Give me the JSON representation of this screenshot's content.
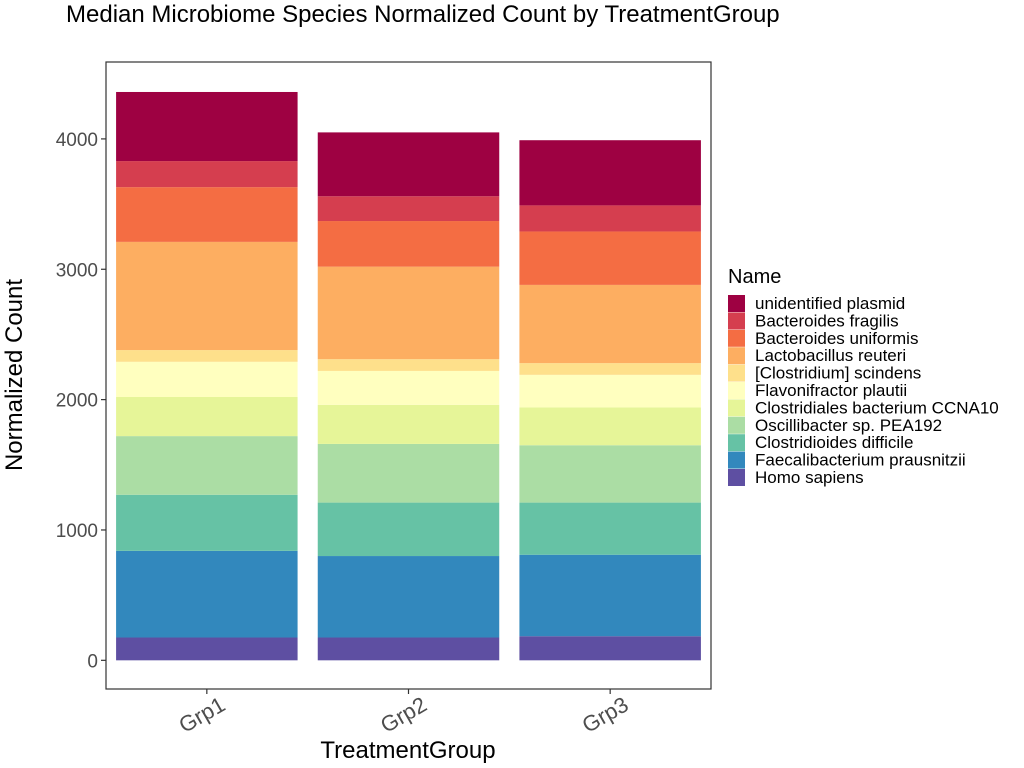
{
  "chart_data": {
    "type": "bar",
    "stacked": true,
    "title": "Median Microbiome Species Normalized Count by TreatmentGroup",
    "xlabel": "TreatmentGroup",
    "ylabel": "Normalized Count",
    "ylim": [
      -220,
      4590
    ],
    "yticks": [
      0,
      1000,
      2000,
      3000,
      4000
    ],
    "grid": false,
    "legend_position": "right",
    "legend_title": "Name",
    "categories": [
      "Grp1",
      "Grp2",
      "Grp3"
    ],
    "series": [
      {
        "name": "Homo sapiens",
        "color": "#5E4FA2",
        "values": [
          175,
          175,
          185
        ]
      },
      {
        "name": "Faecalibacterium prausnitzii",
        "color": "#3288BD",
        "values": [
          665,
          625,
          625
        ]
      },
      {
        "name": "Clostridioides difficile",
        "color": "#66C2A5",
        "values": [
          430,
          410,
          400
        ]
      },
      {
        "name": "Oscillibacter sp. PEA192",
        "color": "#ABDDA4",
        "values": [
          450,
          450,
          440
        ]
      },
      {
        "name": "Clostridiales bacterium CCNA10",
        "color": "#E6F598",
        "values": [
          300,
          300,
          290
        ]
      },
      {
        "name": "Flavonifractor plautii",
        "color": "#FFFFBF",
        "values": [
          270,
          260,
          250
        ]
      },
      {
        "name": "[Clostridium] scindens",
        "color": "#FEE08B",
        "values": [
          90,
          90,
          90
        ]
      },
      {
        "name": "Lactobacillus reuteri",
        "color": "#FDAE61",
        "values": [
          830,
          710,
          600
        ]
      },
      {
        "name": "Bacteroides uniformis",
        "color": "#F46D43",
        "values": [
          420,
          350,
          410
        ]
      },
      {
        "name": "Bacteroides fragilis",
        "color": "#D53E4F",
        "values": [
          200,
          190,
          200
        ]
      },
      {
        "name": "unidentified plasmid",
        "color": "#9E0142",
        "values": [
          530,
          490,
          500
        ]
      }
    ]
  }
}
